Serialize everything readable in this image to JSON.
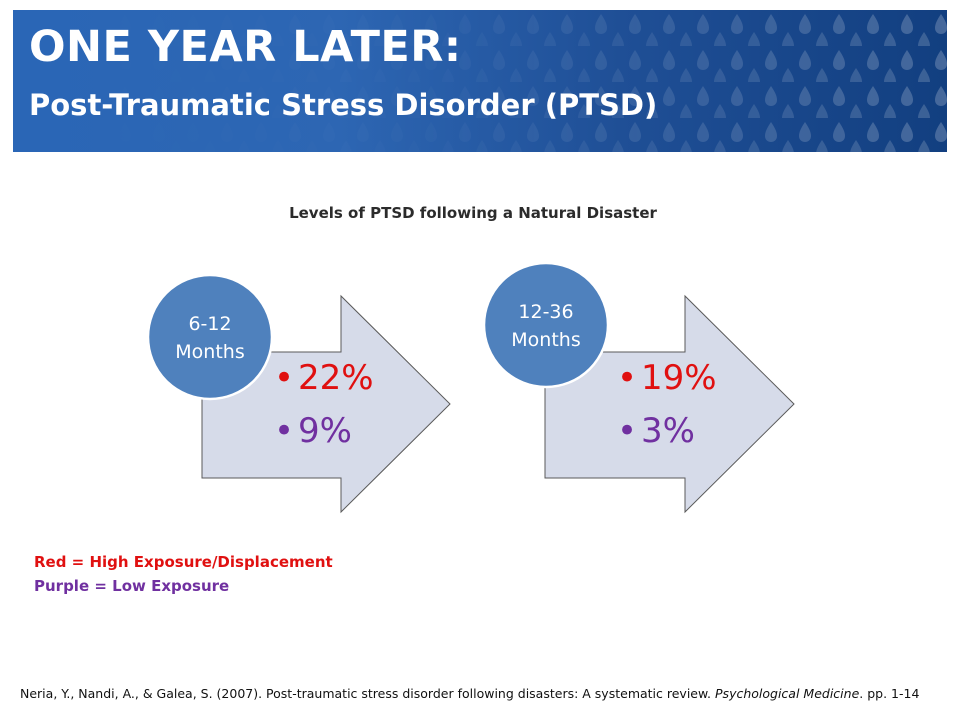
{
  "header": {
    "title": "ONE YEAR LATER:",
    "subtitle": "Post-Traumatic Stress Disorder (PTSD)"
  },
  "diagram_title": "Levels of PTSD following a Natural Disaster",
  "panels": [
    {
      "period_line1": "6-12",
      "period_line2": "Months",
      "high_value": "22%",
      "low_value": "9%"
    },
    {
      "period_line1": "12-36",
      "period_line2": "Months",
      "high_value": "19%",
      "low_value": "3%"
    }
  ],
  "legend": {
    "red": "Red = High Exposure/Displacement",
    "purple": "Purple = Low Exposure"
  },
  "citation": {
    "authors": "Neria, Y., Nandi, A., & Galea, S. (2007). Post-traumatic stress disorder following disasters: A systematic review. ",
    "journal": "Psychological Medicine",
    "pages": ". pp. 1-14"
  },
  "colors": {
    "banner_blue": "#2a66b6",
    "circle_blue": "#4f81bd",
    "arrow_fill": "#d6dbe9",
    "high_exposure_red": "#e01010",
    "low_exposure_purple": "#7030a0"
  }
}
